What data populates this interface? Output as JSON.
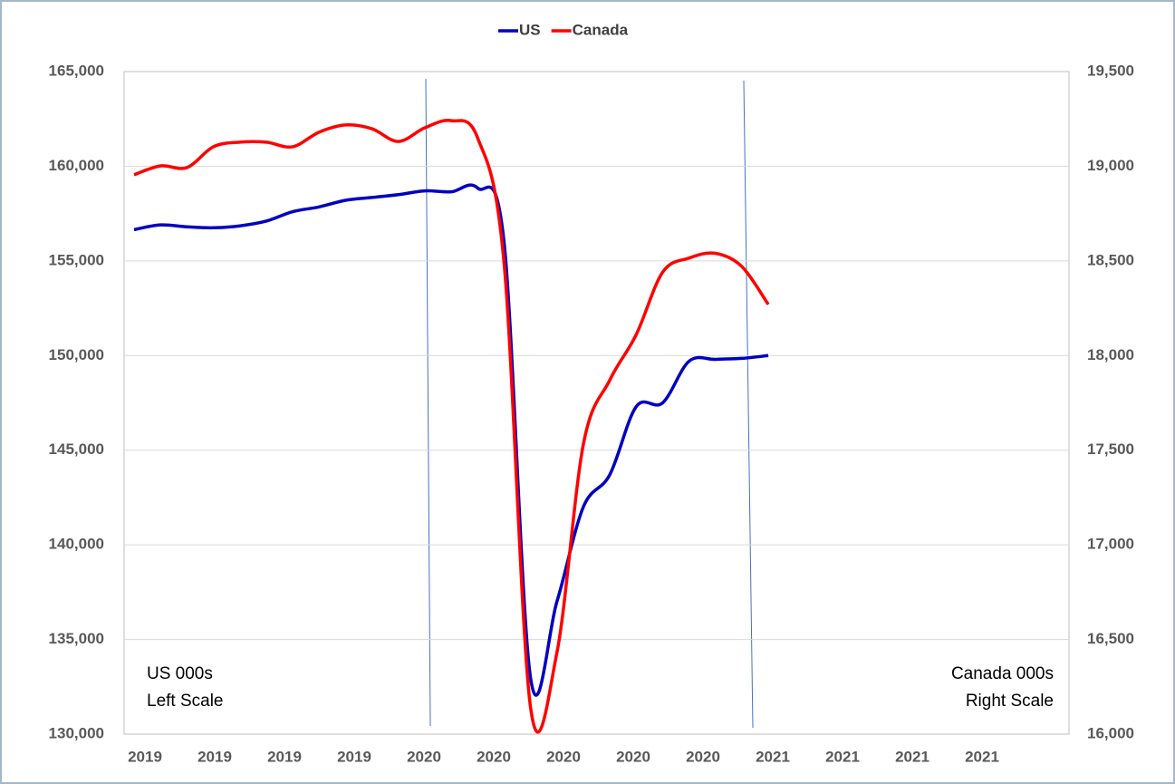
{
  "chart_data": {
    "type": "line",
    "xlabels": [
      "2019",
      "2019",
      "2019",
      "2019",
      "2020",
      "2020",
      "2020",
      "2020",
      "2020",
      "2021",
      "2021",
      "2021",
      "2021"
    ],
    "series": [
      {
        "name": "US",
        "color": "#0000c0",
        "axis": "y",
        "values": [
          156650,
          156900,
          156800,
          156750,
          156850,
          157100,
          157600,
          157850,
          158200,
          158350,
          158500,
          158700,
          158650,
          158850,
          156000,
          133000,
          137000,
          142000,
          143700,
          147300,
          147500,
          149700,
          149800,
          149850,
          150000
        ]
      },
      {
        "name": "Canada",
        "color": "#ff0000",
        "axis": "y2",
        "values": [
          18955,
          19002,
          18993,
          19103,
          19127,
          19127,
          19103,
          19180,
          19218,
          19198,
          19131,
          19203,
          19241,
          19150,
          18490,
          16145,
          16430,
          17530,
          17870,
          18110,
          18440,
          18515,
          18540,
          18470,
          18270
        ]
      }
    ],
    "ylim": [
      130000,
      165000
    ],
    "yticks": [
      {
        "value": 130000,
        "label": "130,000"
      },
      {
        "value": 135000,
        "label": "135,000"
      },
      {
        "value": 140000,
        "label": "140,000"
      },
      {
        "value": 145000,
        "label": "145,000"
      },
      {
        "value": 150000,
        "label": "150,000"
      },
      {
        "value": 155000,
        "label": "155,000"
      },
      {
        "value": 160000,
        "label": "160,000"
      },
      {
        "value": 165000,
        "label": "165,000"
      }
    ],
    "y2lim": [
      16000,
      19500
    ],
    "y2ticks": [
      {
        "value": 16000,
        "label": "16,000"
      },
      {
        "value": 16500,
        "label": "16,500"
      },
      {
        "value": 17000,
        "label": "17,000"
      },
      {
        "value": 17500,
        "label": "17,500"
      },
      {
        "value": 18000,
        "label": "18,000"
      },
      {
        "value": 18500,
        "label": "18,500"
      },
      {
        "value": 19000,
        "label": "19,000"
      },
      {
        "value": 19500,
        "label": "19,500"
      }
    ],
    "grid": true,
    "legend": "top",
    "annotations": {
      "left": [
        "US 000s",
        "Left Scale"
      ],
      "right": [
        "Canada 000s",
        "Right Scale"
      ]
    }
  }
}
